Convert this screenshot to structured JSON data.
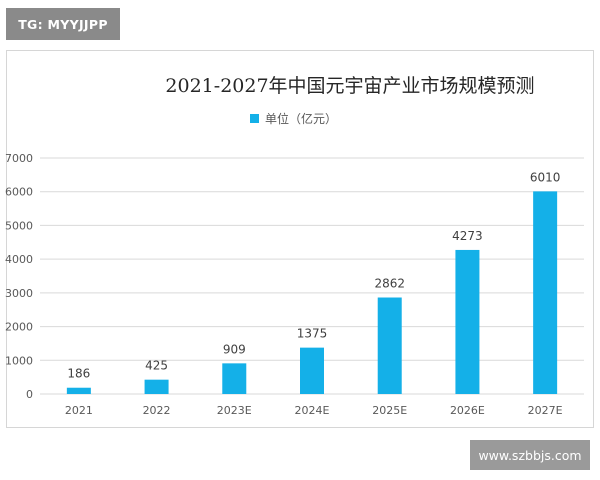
{
  "tag_label": "TG: MYYJJPP",
  "site_label": "www.szbbjs.com",
  "colors": {
    "bar": "#14b0e8",
    "grid": "#d9d9d9",
    "text": "#595959",
    "title": "#262626"
  },
  "chart_data": {
    "type": "bar",
    "title": "2021-2027年中国元宇宙产业市场规模预测",
    "categories": [
      "2021",
      "2022",
      "2023E",
      "2024E",
      "2025E",
      "2026E",
      "2027E"
    ],
    "series": [
      {
        "name": "单位（亿元）",
        "values": [
          186,
          425,
          909,
          1375,
          2862,
          4273,
          6010
        ]
      }
    ],
    "ylim": [
      0,
      7000
    ],
    "yticks": [
      0,
      1000,
      2000,
      3000,
      4000,
      5000,
      6000,
      7000
    ],
    "grid": true,
    "legend_position": "top-left",
    "data_labels": true
  }
}
